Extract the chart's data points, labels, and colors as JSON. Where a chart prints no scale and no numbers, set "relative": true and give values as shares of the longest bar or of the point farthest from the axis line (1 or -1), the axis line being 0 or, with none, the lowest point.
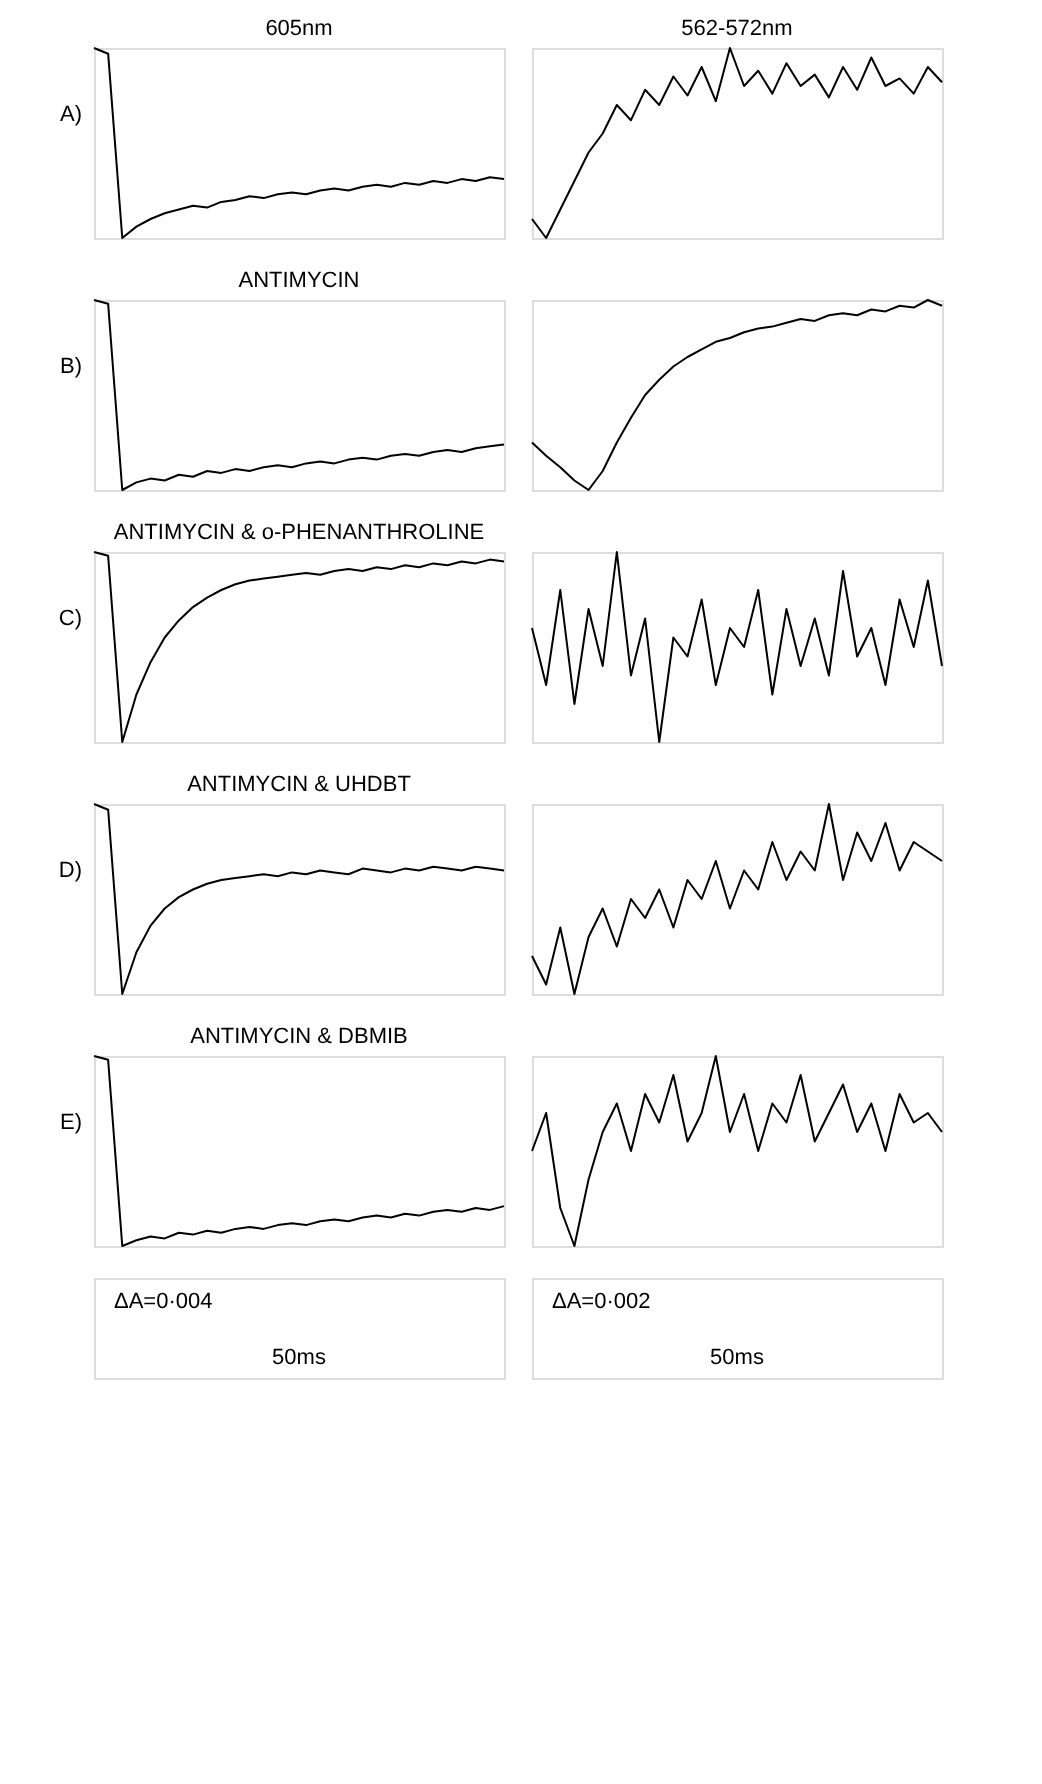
{
  "chart_data": [
    {
      "type": "line",
      "relative": true,
      "title": "605nm",
      "annotations": [
        "A)"
      ],
      "color": "#000000",
      "categories": [
        null,
        null,
        null,
        null,
        null,
        null,
        null,
        null,
        null,
        null,
        null,
        null,
        null,
        null,
        null,
        null,
        null,
        null,
        null,
        null,
        null,
        null,
        null,
        null,
        null,
        null,
        null,
        null,
        null,
        null
      ],
      "values": [
        1,
        0.97,
        0,
        0.06,
        0.1,
        0.13,
        0.15,
        0.17,
        0.16,
        0.19,
        0.2,
        0.22,
        0.21,
        0.23,
        0.24,
        0.23,
        0.25,
        0.26,
        0.25,
        0.27,
        0.28,
        0.27,
        0.29,
        0.28,
        0.3,
        0.29,
        0.31,
        0.3,
        0.32,
        0.31
      ]
    },
    {
      "type": "line",
      "relative": true,
      "title": "562-572nm",
      "color": "#000000",
      "categories": [
        null,
        null,
        null,
        null,
        null,
        null,
        null,
        null,
        null,
        null,
        null,
        null,
        null,
        null,
        null,
        null,
        null,
        null,
        null,
        null,
        null,
        null,
        null,
        null,
        null,
        null,
        null,
        null,
        null,
        null
      ],
      "values": [
        0.1,
        0,
        0.15,
        0.3,
        0.45,
        0.55,
        0.7,
        0.62,
        0.78,
        0.7,
        0.85,
        0.75,
        0.9,
        0.72,
        1,
        0.8,
        0.88,
        0.76,
        0.92,
        0.8,
        0.86,
        0.74,
        0.9,
        0.78,
        0.95,
        0.8,
        0.84,
        0.76,
        0.9,
        0.82
      ]
    },
    {
      "type": "line",
      "relative": true,
      "title": "ANTIMYCIN",
      "annotations": [
        "B)"
      ],
      "color": "#000000",
      "categories": [
        null,
        null,
        null,
        null,
        null,
        null,
        null,
        null,
        null,
        null,
        null,
        null,
        null,
        null,
        null,
        null,
        null,
        null,
        null,
        null,
        null,
        null,
        null,
        null,
        null,
        null,
        null,
        null,
        null,
        null
      ],
      "values": [
        1,
        0.98,
        0,
        0.04,
        0.06,
        0.05,
        0.08,
        0.07,
        0.1,
        0.09,
        0.11,
        0.1,
        0.12,
        0.13,
        0.12,
        0.14,
        0.15,
        0.14,
        0.16,
        0.17,
        0.16,
        0.18,
        0.19,
        0.18,
        0.2,
        0.21,
        0.2,
        0.22,
        0.23,
        0.24
      ]
    },
    {
      "type": "line",
      "relative": true,
      "color": "#000000",
      "categories": [
        null,
        null,
        null,
        null,
        null,
        null,
        null,
        null,
        null,
        null,
        null,
        null,
        null,
        null,
        null,
        null,
        null,
        null,
        null,
        null,
        null,
        null,
        null,
        null,
        null,
        null,
        null,
        null,
        null,
        null
      ],
      "values": [
        0.25,
        0.18,
        0.12,
        0.05,
        0,
        0.1,
        0.25,
        0.38,
        0.5,
        0.58,
        0.65,
        0.7,
        0.74,
        0.78,
        0.8,
        0.83,
        0.85,
        0.86,
        0.88,
        0.9,
        0.89,
        0.92,
        0.93,
        0.92,
        0.95,
        0.94,
        0.97,
        0.96,
        1,
        0.97
      ]
    },
    {
      "type": "line",
      "relative": true,
      "title": "ANTIMYCIN & o-PHENANTHROLINE",
      "annotations": [
        "C)"
      ],
      "color": "#000000",
      "categories": [
        null,
        null,
        null,
        null,
        null,
        null,
        null,
        null,
        null,
        null,
        null,
        null,
        null,
        null,
        null,
        null,
        null,
        null,
        null,
        null,
        null,
        null,
        null,
        null,
        null,
        null,
        null,
        null,
        null,
        null
      ],
      "values": [
        1,
        0.98,
        0,
        0.25,
        0.42,
        0.55,
        0.64,
        0.71,
        0.76,
        0.8,
        0.83,
        0.85,
        0.86,
        0.87,
        0.88,
        0.89,
        0.88,
        0.9,
        0.91,
        0.9,
        0.92,
        0.91,
        0.93,
        0.92,
        0.94,
        0.93,
        0.95,
        0.94,
        0.96,
        0.95
      ]
    },
    {
      "type": "line",
      "relative": true,
      "color": "#000000",
      "categories": [
        null,
        null,
        null,
        null,
        null,
        null,
        null,
        null,
        null,
        null,
        null,
        null,
        null,
        null,
        null,
        null,
        null,
        null,
        null,
        null,
        null,
        null,
        null,
        null,
        null,
        null,
        null,
        null,
        null,
        null
      ],
      "values": [
        0.6,
        0.3,
        0.8,
        0.2,
        0.7,
        0.4,
        1,
        0.35,
        0.65,
        0,
        0.55,
        0.45,
        0.75,
        0.3,
        0.6,
        0.5,
        0.8,
        0.25,
        0.7,
        0.4,
        0.65,
        0.35,
        0.9,
        0.45,
        0.6,
        0.3,
        0.75,
        0.5,
        0.85,
        0.4
      ]
    },
    {
      "type": "line",
      "relative": true,
      "title": "ANTIMYCIN & UHDBT",
      "annotations": [
        "D)"
      ],
      "color": "#000000",
      "categories": [
        null,
        null,
        null,
        null,
        null,
        null,
        null,
        null,
        null,
        null,
        null,
        null,
        null,
        null,
        null,
        null,
        null,
        null,
        null,
        null,
        null,
        null,
        null,
        null,
        null,
        null,
        null,
        null,
        null,
        null
      ],
      "values": [
        1,
        0.97,
        0,
        0.22,
        0.36,
        0.45,
        0.51,
        0.55,
        0.58,
        0.6,
        0.61,
        0.62,
        0.63,
        0.62,
        0.64,
        0.63,
        0.65,
        0.64,
        0.63,
        0.66,
        0.65,
        0.64,
        0.66,
        0.65,
        0.67,
        0.66,
        0.65,
        0.67,
        0.66,
        0.65
      ]
    },
    {
      "type": "line",
      "relative": true,
      "color": "#000000",
      "categories": [
        null,
        null,
        null,
        null,
        null,
        null,
        null,
        null,
        null,
        null,
        null,
        null,
        null,
        null,
        null,
        null,
        null,
        null,
        null,
        null,
        null,
        null,
        null,
        null,
        null,
        null,
        null,
        null,
        null,
        null
      ],
      "values": [
        0.2,
        0.05,
        0.35,
        0,
        0.3,
        0.45,
        0.25,
        0.5,
        0.4,
        0.55,
        0.35,
        0.6,
        0.5,
        0.7,
        0.45,
        0.65,
        0.55,
        0.8,
        0.6,
        0.75,
        0.65,
        1,
        0.6,
        0.85,
        0.7,
        0.9,
        0.65,
        0.8,
        0.75,
        0.7
      ]
    },
    {
      "type": "line",
      "relative": true,
      "title": "ANTIMYCIN & DBMIB",
      "annotations": [
        "E)"
      ],
      "color": "#000000",
      "categories": [
        null,
        null,
        null,
        null,
        null,
        null,
        null,
        null,
        null,
        null,
        null,
        null,
        null,
        null,
        null,
        null,
        null,
        null,
        null,
        null,
        null,
        null,
        null,
        null,
        null,
        null,
        null,
        null,
        null,
        null
      ],
      "values": [
        1,
        0.98,
        0,
        0.03,
        0.05,
        0.04,
        0.07,
        0.06,
        0.08,
        0.07,
        0.09,
        0.1,
        0.09,
        0.11,
        0.12,
        0.11,
        0.13,
        0.14,
        0.13,
        0.15,
        0.16,
        0.15,
        0.17,
        0.16,
        0.18,
        0.19,
        0.18,
        0.2,
        0.19,
        0.21
      ]
    },
    {
      "type": "line",
      "relative": true,
      "color": "#000000",
      "categories": [
        null,
        null,
        null,
        null,
        null,
        null,
        null,
        null,
        null,
        null,
        null,
        null,
        null,
        null,
        null,
        null,
        null,
        null,
        null,
        null,
        null,
        null,
        null,
        null,
        null,
        null,
        null,
        null,
        null,
        null
      ],
      "values": [
        0.5,
        0.7,
        0.2,
        0,
        0.35,
        0.6,
        0.75,
        0.5,
        0.8,
        0.65,
        0.9,
        0.55,
        0.7,
        1,
        0.6,
        0.8,
        0.5,
        0.75,
        0.65,
        0.9,
        0.55,
        0.7,
        0.85,
        0.6,
        0.75,
        0.5,
        0.8,
        0.65,
        0.7,
        0.6
      ]
    },
    {
      "type": "other",
      "annotations": [
        "ΔA=0·004",
        "50ms"
      ]
    },
    {
      "type": "other",
      "annotations": [
        "ΔA=0·002",
        "50ms"
      ]
    }
  ]
}
